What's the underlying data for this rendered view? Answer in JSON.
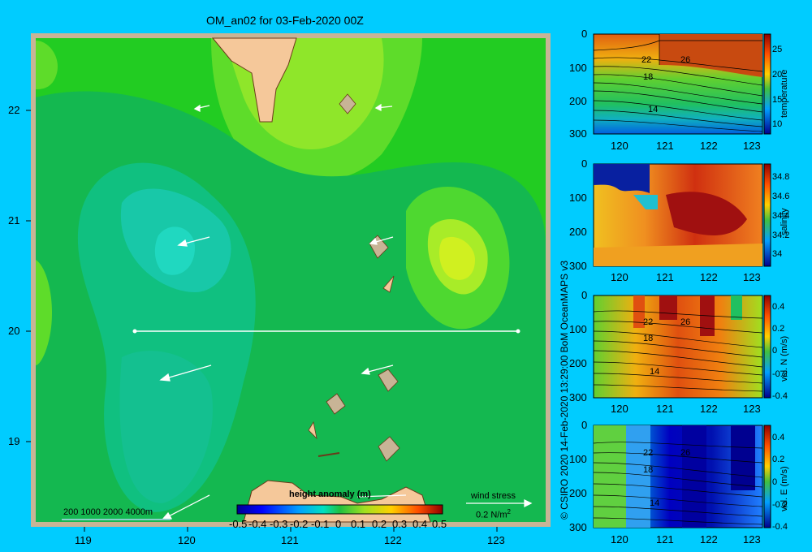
{
  "title": "OM_an02 for 03-Feb-2020 00Z",
  "map": {
    "x_ticks": [
      "119",
      "120",
      "121",
      "122",
      "123"
    ],
    "y_ticks": [
      "22",
      "21",
      "20",
      "19"
    ],
    "depth_legend": "200  1000  2000  4000m",
    "wind_stress_label": "wind stress",
    "wind_stress_value": "0.2 N/m",
    "wind_stress_exp": "2",
    "colorbar_title": "height anomaly  (m)",
    "colorbar_ticks": [
      "-0.5",
      "-0.4",
      "-0.3",
      "-0.2",
      "-0.1",
      "0",
      "0.1",
      "0.2",
      "0.3",
      "0.4",
      "0.5"
    ],
    "section_line": {
      "lon_start": 119.5,
      "lon_end": 123.2,
      "lat": 20.0
    }
  },
  "credit": "© CSIRO 2020   14-Feb-2020 13:29:00 BoM OceanMAPS v3",
  "panels": [
    {
      "name": "temperature",
      "y_ticks": [
        "0",
        "100",
        "200",
        "300"
      ],
      "x_ticks": [
        "120",
        "121",
        "122",
        "123"
      ],
      "cb_ticks": [
        "25",
        "20",
        "15",
        "10"
      ],
      "contour_labels": [
        "22",
        "26",
        "18",
        "14"
      ]
    },
    {
      "name": "salinity",
      "y_ticks": [
        "0",
        "100",
        "200",
        "300"
      ],
      "x_ticks": [
        "120",
        "121",
        "122",
        "123"
      ],
      "cb_ticks": [
        "34.8",
        "34.6",
        "34.4",
        "34.2",
        "34"
      ],
      "contour_labels": []
    },
    {
      "name": "vel. N (m/s)",
      "y_ticks": [
        "0",
        "100",
        "200",
        "300"
      ],
      "x_ticks": [
        "120",
        "121",
        "122",
        "123"
      ],
      "cb_ticks": [
        "0.4",
        "0.2",
        "0",
        "-0.2",
        "-0.4"
      ],
      "contour_labels": [
        "22",
        "26",
        "18",
        "14"
      ]
    },
    {
      "name": "vel. E (m/s)",
      "y_ticks": [
        "0",
        "100",
        "200",
        "300"
      ],
      "x_ticks": [
        "120",
        "121",
        "122",
        "123"
      ],
      "cb_ticks": [
        "0.4",
        "0.2",
        "0",
        "-0.2",
        "-0.4"
      ],
      "contour_labels": [
        "22",
        "26",
        "18",
        "14"
      ]
    }
  ],
  "colors": {
    "background": "#00ccff",
    "land": "#f5c89a",
    "frame": "#c8b496"
  }
}
